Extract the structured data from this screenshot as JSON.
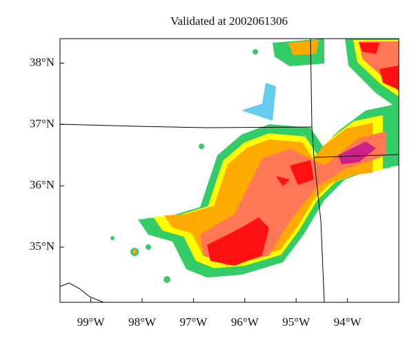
{
  "map": {
    "title": "Validated at 2002061306",
    "lonlim": [
      -99.6,
      -93.0
    ],
    "latlim": [
      34.1,
      38.4
    ],
    "lon_ticks": [
      {
        "value": -99,
        "label": "99°W"
      },
      {
        "value": -98,
        "label": "98°W"
      },
      {
        "value": -97,
        "label": "97°W"
      },
      {
        "value": -96,
        "label": "96°W"
      },
      {
        "value": -95,
        "label": "95°W"
      },
      {
        "value": -94,
        "label": "94°W"
      }
    ],
    "lat_ticks": [
      {
        "value": 38,
        "label": "38°N"
      },
      {
        "value": 37,
        "label": "37°N"
      },
      {
        "value": 36,
        "label": "36°N"
      },
      {
        "value": 35,
        "label": "35°N"
      }
    ]
  }
}
